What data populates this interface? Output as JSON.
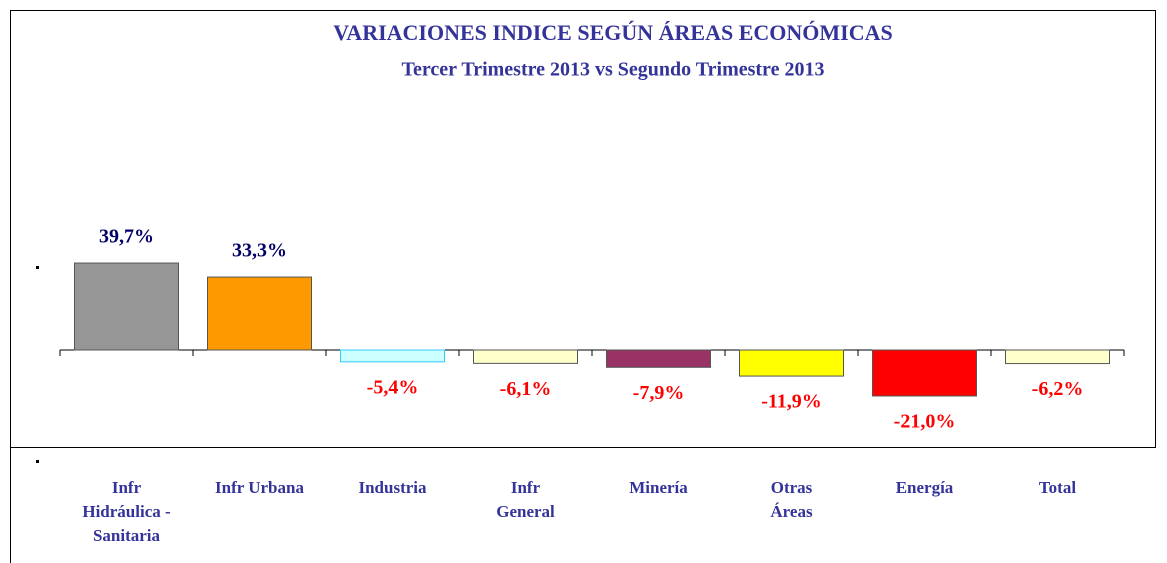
{
  "chart_data": {
    "type": "bar",
    "title": "VARIACIONES INDICE SEGÚN ÁREAS ECONÓMICAS",
    "subtitle": "Tercer Trimestre 2013 vs Segundo Trimestre 2013",
    "categories": [
      "Infr\nHidráulica -\nSanitaria",
      "Infr Urbana",
      "Industria",
      "Infr\nGeneral",
      "Minería",
      "Otras\nÁreas",
      "Energía",
      "Total"
    ],
    "values": [
      39.7,
      33.3,
      -5.4,
      -6.1,
      -7.9,
      -11.9,
      -21.0,
      -6.2
    ],
    "value_labels": [
      "39,7%",
      "33,3%",
      "-5,4%",
      "-6,1%",
      "-7,9%",
      "-11,9%",
      "-21,0%",
      "-6,2%"
    ],
    "colors": [
      "#969696",
      "#ff9900",
      "#ccffff",
      "#ffffcc",
      "#993366",
      "#ffff00",
      "#ff0000",
      "#ffffcc"
    ],
    "ylim": [
      -50,
      40
    ]
  }
}
